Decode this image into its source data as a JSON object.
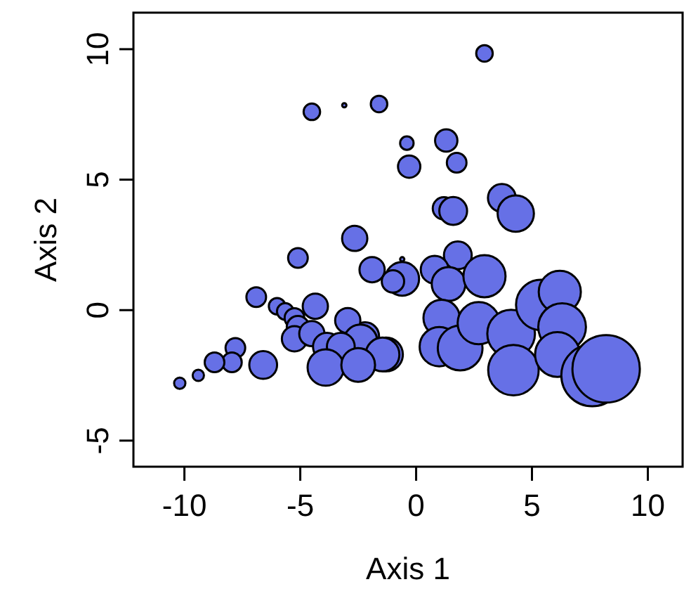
{
  "chart_data": {
    "type": "bubble",
    "xlabel": "Axis 1",
    "ylabel": "Axis 2",
    "xlim": [
      -12.2,
      11.5
    ],
    "ylim": [
      -6,
      11.4
    ],
    "xticks": [
      -10,
      -5,
      0,
      5,
      10
    ],
    "yticks": [
      -5,
      0,
      5,
      10
    ],
    "grid": false,
    "marker": "circle",
    "series": [
      {
        "color": "#6670e6",
        "x": [
          2.95,
          -4.5,
          -3.1,
          -1.6,
          -0.4,
          -0.3,
          1.3,
          1.75,
          1.2,
          1.6,
          3.7,
          4.3,
          -5.1,
          -2.65,
          -1.9,
          -0.6,
          -0.6,
          -1.0,
          1.8,
          0.8,
          1.4,
          2.95,
          1.1,
          1.0,
          1.9,
          2.7,
          4.1,
          4.2,
          5.4,
          6.2,
          6.3,
          6.1,
          7.6,
          8.2,
          -2.2,
          -1.3,
          -6.9,
          -6.0,
          -5.65,
          -5.25,
          -4.35,
          -5.1,
          -5.25,
          -4.5,
          -3.85,
          -2.95,
          -2.4,
          -3.25,
          -1.45,
          -3.9,
          -2.5,
          -6.6,
          -7.8,
          -7.95,
          -8.7,
          -9.4,
          -10.2
        ],
        "values": [
          9.84,
          7.6,
          7.85,
          7.9,
          6.4,
          5.5,
          6.5,
          5.65,
          3.9,
          3.8,
          4.3,
          3.7,
          2.0,
          2.75,
          1.55,
          1.95,
          1.2,
          1.1,
          2.1,
          1.55,
          1.0,
          1.3,
          -0.3,
          -1.4,
          -1.45,
          -0.5,
          -0.9,
          -2.3,
          0.2,
          0.7,
          -0.65,
          -1.7,
          -2.5,
          -2.25,
          -1.0,
          -1.7,
          0.5,
          0.15,
          -0.05,
          -0.3,
          0.15,
          -0.65,
          -1.1,
          -0.9,
          -1.4,
          -0.4,
          -1.2,
          -1.4,
          -1.7,
          -2.2,
          -2.1,
          -2.1,
          -1.45,
          -2.0,
          -2.0,
          -2.5,
          -2.8
        ],
        "sizes": [
          0.06,
          0.06,
          0.004,
          0.06,
          0.04,
          0.11,
          0.11,
          0.085,
          0.11,
          0.17,
          0.17,
          0.29,
          0.085,
          0.14,
          0.14,
          0.004,
          0.25,
          0.11,
          0.17,
          0.17,
          0.25,
          0.39,
          0.29,
          0.34,
          0.44,
          0.39,
          0.5,
          0.56,
          0.56,
          0.39,
          0.5,
          0.44,
          0.84,
          1,
          0.17,
          0.25,
          0.085,
          0.06,
          0.06,
          0.085,
          0.14,
          0.11,
          0.14,
          0.14,
          0.17,
          0.14,
          0.25,
          0.17,
          0.25,
          0.29,
          0.25,
          0.17,
          0.085,
          0.085,
          0.085,
          0.028,
          0.028
        ]
      }
    ]
  }
}
